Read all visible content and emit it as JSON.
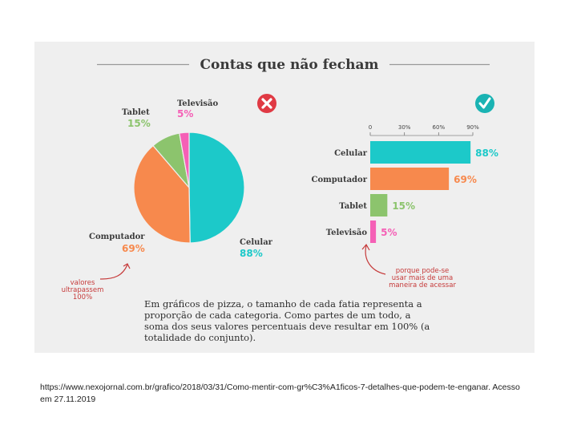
{
  "title": "Contas que não fecham",
  "colors": {
    "celular": "#1cc9c9",
    "computador": "#f7894d",
    "tablet": "#8cc46d",
    "televisao": "#f560b6",
    "red": "#e03a44",
    "teal": "#1ab3b3",
    "note": "#c63a3a"
  },
  "icons": {
    "wrong": "x-mark-icon",
    "right": "check-mark-icon"
  },
  "chart_data": [
    {
      "type": "pie",
      "categories": [
        "Celular",
        "Computador",
        "Tablet",
        "Televisão"
      ],
      "values": [
        88,
        69,
        15,
        5
      ],
      "value_labels": [
        "88%",
        "69%",
        "15%",
        "5%"
      ],
      "note": [
        "valores",
        "ultrapassem",
        "100%"
      ]
    },
    {
      "type": "bar",
      "orientation": "horizontal",
      "categories": [
        "Celular",
        "Computador",
        "Tablet",
        "Televisão"
      ],
      "values": [
        88,
        69,
        15,
        5
      ],
      "value_labels": [
        "88%",
        "69%",
        "15%",
        "5%"
      ],
      "ticks": [
        "0",
        "30%",
        "60%",
        "90%"
      ],
      "tick_values": [
        0,
        30,
        60,
        90
      ],
      "xlim": [
        0,
        90
      ],
      "note": [
        "porque pode-se",
        "usar mais de uma",
        "maneira de acessar"
      ]
    }
  ],
  "description_lines": [
    "Em gráficos de pizza, o tamanho de cada fatia representa a",
    "proporção de cada categoria. Como partes de um todo, a",
    "soma dos seus valores percentuais deve resultar em 100% (a",
    "totalidade do conjunto)."
  ],
  "citation": "https://www.nexojornal.com.br/grafico/2018/03/31/Como-mentir-com-gr%C3%A1ficos-7-detalhes-que-podem-te-enganar. Acesso em 27.11.2019"
}
